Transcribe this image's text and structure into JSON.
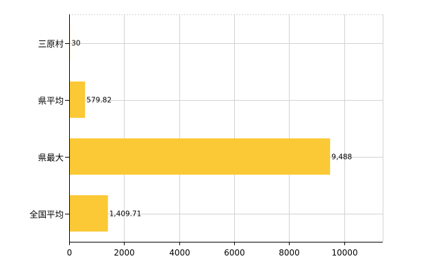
{
  "chart_data": {
    "type": "bar",
    "orientation": "horizontal",
    "title": "",
    "xlabel": "",
    "ylabel": "",
    "categories": [
      "三原村",
      "県平均",
      "県最大",
      "全国平均"
    ],
    "values": [
      30,
      579.82,
      9488,
      1409.71
    ],
    "value_labels": [
      "30",
      "579.82",
      "9,488",
      "1,409.71"
    ],
    "xlim": [
      0,
      11400
    ],
    "x_ticks": [
      0,
      2000,
      4000,
      6000,
      8000,
      10000
    ],
    "x_tick_labels": [
      "0",
      "2000",
      "4000",
      "6000",
      "8000",
      "10000"
    ],
    "grid": true,
    "legend": "none",
    "bar_color": "#FBC936"
  }
}
